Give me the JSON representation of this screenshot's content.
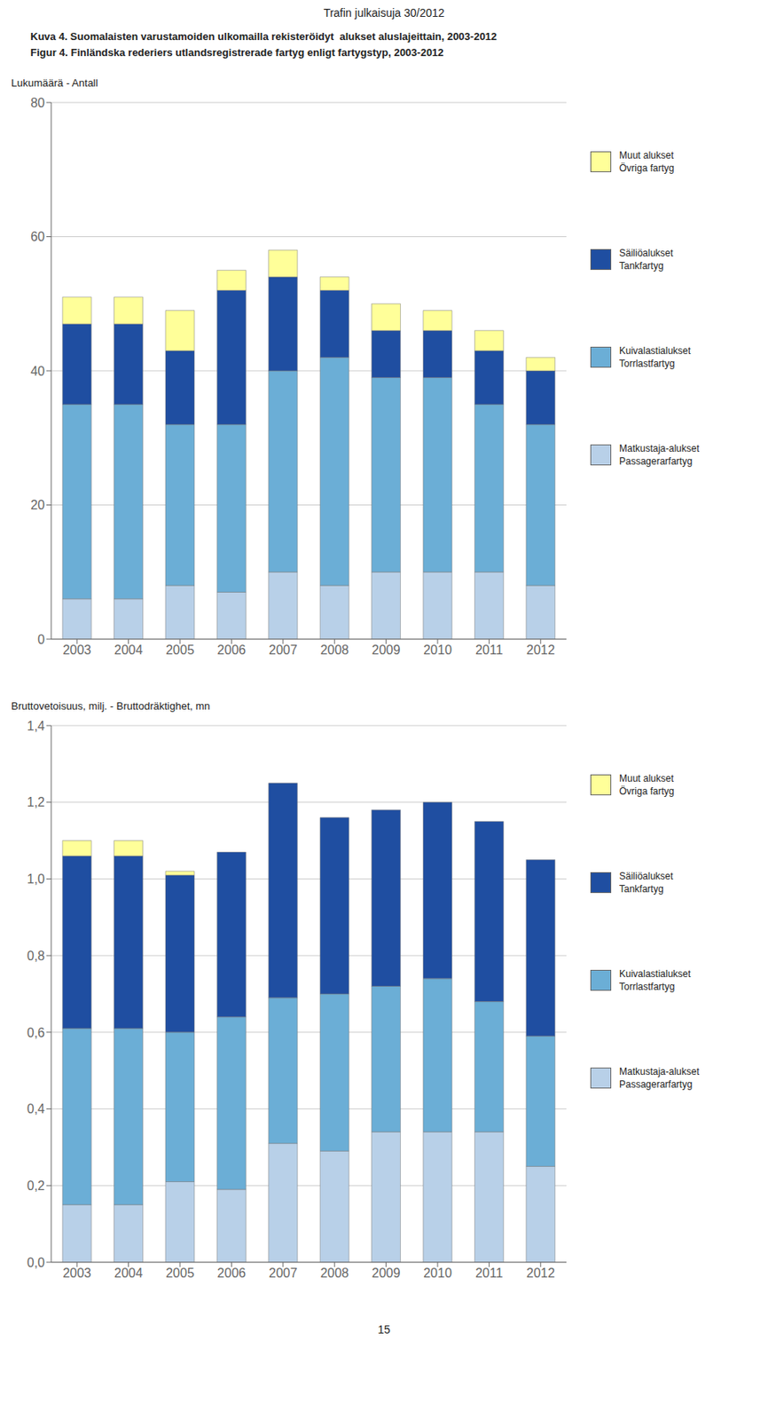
{
  "chart_data": [
    {
      "type": "bar",
      "stacked": true,
      "grid": true,
      "title": "Kuva 4. Suomalaisten varustamoiden ulkomailla rekisteröidyt  alukset aluslajeittain, 2003-2012",
      "subtitle": "Figur 4. Finländska rederiers utlandsregistrerade fartyg enligt fartygstyp, 2003-2012",
      "annotations": [
        "Trafin julkaisuja 30/2012",
        "15"
      ],
      "ylabel": "Lukumäärä - Antall",
      "categories": [
        "2003",
        "2004",
        "2005",
        "2006",
        "2007",
        "2008",
        "2009",
        "2010",
        "2011",
        "2012"
      ],
      "ylim": [
        0,
        80
      ],
      "yticks": [
        0,
        20,
        40,
        60,
        80
      ],
      "series": [
        {
          "name": "Matkustaja-alukset\nPassagerarfartyg",
          "color": "#b8d0e8",
          "values": [
            6,
            6,
            8,
            7,
            10,
            8,
            10,
            10,
            10,
            8
          ]
        },
        {
          "name": "Kuivalastialukset\nTorrlastfartyg",
          "color": "#6baed6",
          "values": [
            29,
            29,
            24,
            25,
            30,
            34,
            29,
            29,
            25,
            24
          ]
        },
        {
          "name": "Säiliöalukset\nTankfartyg",
          "color": "#1f4ea1",
          "values": [
            12,
            12,
            11,
            20,
            14,
            10,
            7,
            7,
            8,
            8
          ]
        },
        {
          "name": "Muut alukset\nÖvriga fartyg",
          "color": "#ffff99",
          "values": [
            4,
            4,
            6,
            3,
            4,
            2,
            4,
            3,
            3,
            2
          ]
        }
      ]
    },
    {
      "type": "bar",
      "stacked": true,
      "grid": true,
      "ylabel": "Bruttovetoisuus, milj. - Bruttodräktighet, mn",
      "categories": [
        "2003",
        "2004",
        "2005",
        "2006",
        "2007",
        "2008",
        "2009",
        "2010",
        "2011",
        "2012"
      ],
      "ylim": [
        0.0,
        1.4
      ],
      "yticks": [
        {
          "value": 0.0,
          "label": "0,0"
        },
        {
          "value": 0.2,
          "label": "0,2"
        },
        {
          "value": 0.4,
          "label": "0,4"
        },
        {
          "value": 0.6,
          "label": "0,6"
        },
        {
          "value": 0.8,
          "label": "0,8"
        },
        {
          "value": 1.0,
          "label": "1,0"
        },
        {
          "value": 1.2,
          "label": "1,2"
        },
        {
          "value": 1.4,
          "label": "1,4"
        }
      ],
      "series": [
        {
          "name": "Matkustaja-alukset\nPassagerarfartyg",
          "color": "#b8d0e8",
          "values": [
            0.15,
            0.15,
            0.21,
            0.19,
            0.31,
            0.29,
            0.34,
            0.34,
            0.34,
            0.25
          ]
        },
        {
          "name": "Kuivalastialukset\nTorrlastfartyg",
          "color": "#6baed6",
          "values": [
            0.46,
            0.46,
            0.39,
            0.45,
            0.38,
            0.41,
            0.38,
            0.4,
            0.34,
            0.34
          ]
        },
        {
          "name": "Säiliöalukset\nTankfartyg",
          "color": "#1f4ea1",
          "values": [
            0.45,
            0.45,
            0.41,
            0.43,
            0.56,
            0.46,
            0.46,
            0.46,
            0.47,
            0.46
          ]
        },
        {
          "name": "Muut alukset\nÖvriga fartyg",
          "color": "#ffff99",
          "values": [
            0.04,
            0.04,
            0.01,
            0.0,
            0.0,
            0.0,
            0.0,
            0.0,
            0.0,
            0.0
          ]
        }
      ]
    }
  ]
}
